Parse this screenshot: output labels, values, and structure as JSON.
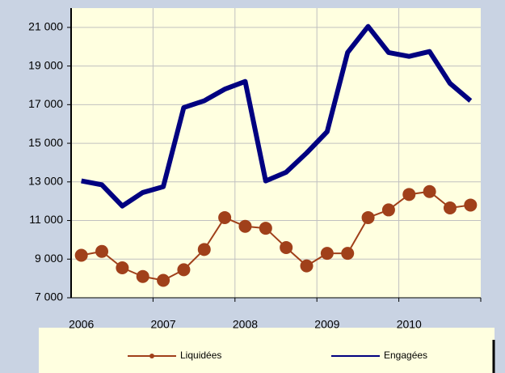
{
  "chart_data": {
    "type": "line",
    "categories": [
      "2006",
      null,
      null,
      null,
      "2007",
      null,
      null,
      null,
      "2008",
      null,
      null,
      null,
      "2009",
      null,
      null,
      null,
      "2010",
      null,
      null,
      null
    ],
    "series": [
      {
        "name": "Liquidées",
        "color": "#a0401a",
        "values": [
          9200,
          9400,
          8550,
          8100,
          7900,
          8450,
          9500,
          11150,
          10700,
          10600,
          9600,
          8650,
          9300,
          9300,
          11150,
          11550,
          12350,
          12500,
          11650,
          11800
        ]
      },
      {
        "name": "Engagées",
        "color": "#000080",
        "values": [
          13050,
          12850,
          11750,
          12450,
          12750,
          16850,
          17200,
          17800,
          18200,
          13050,
          13500,
          14500,
          15600,
          19700,
          21050,
          19700,
          19500,
          19750,
          18100,
          17200
        ]
      }
    ],
    "ylim": [
      7000,
      22000
    ],
    "yticks": [
      {
        "value": 7000,
        "label": "7 000"
      },
      {
        "value": 9000,
        "label": "9 000"
      },
      {
        "value": 11000,
        "label": "11 000"
      },
      {
        "value": 13000,
        "label": "13 000"
      },
      {
        "value": 15000,
        "label": "15 000"
      },
      {
        "value": 17000,
        "label": "17 000"
      },
      {
        "value": 19000,
        "label": "19 000"
      },
      {
        "value": 21000,
        "label": "21 000"
      }
    ],
    "grid": true,
    "legend": "bottom"
  }
}
